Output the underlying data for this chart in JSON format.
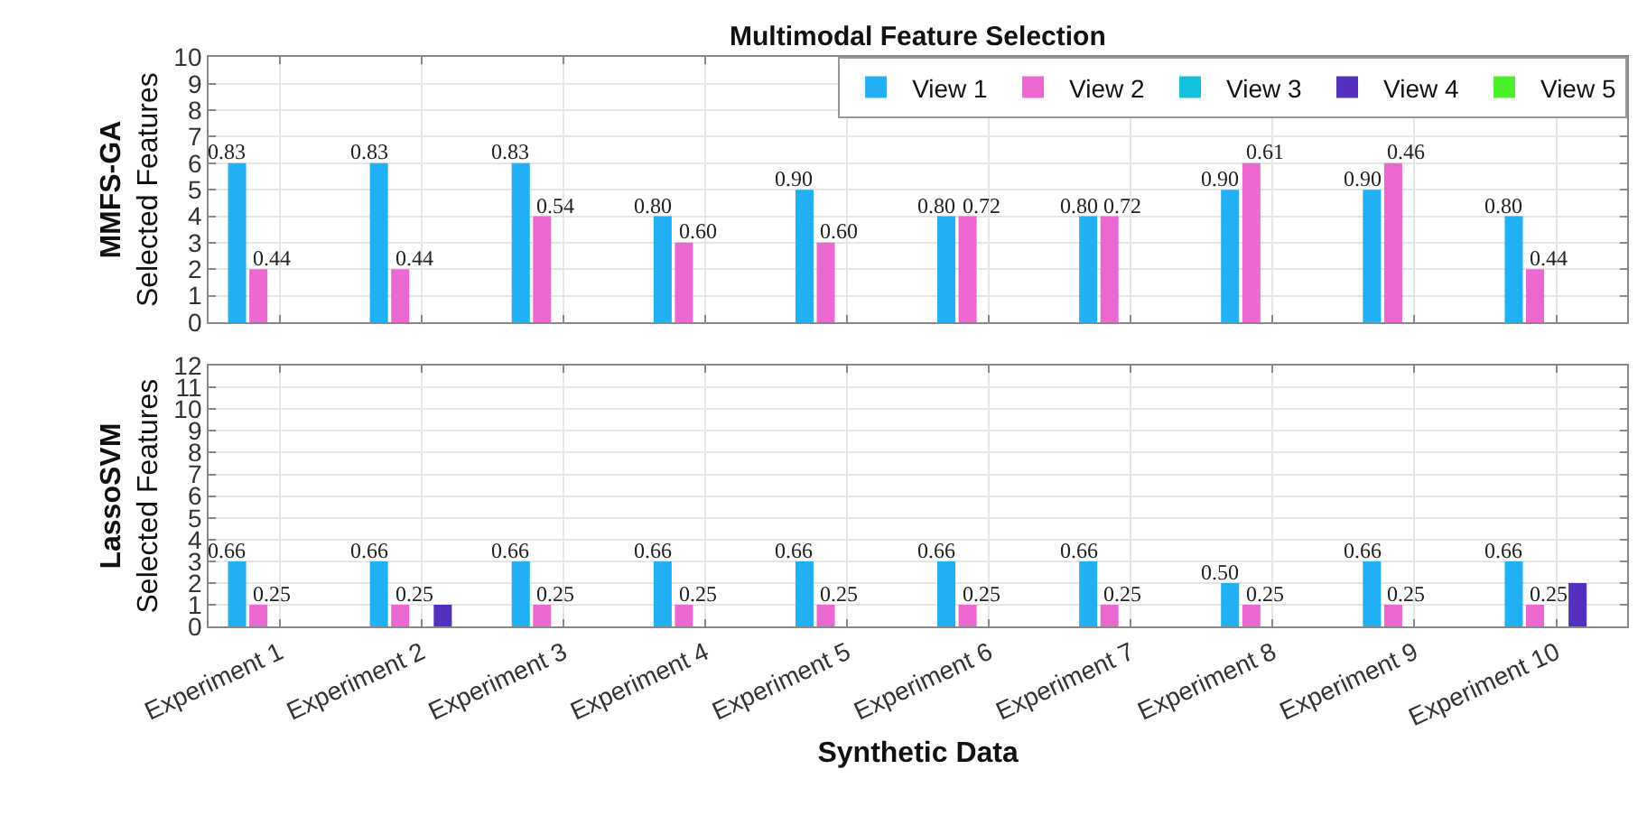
{
  "chart_data": [
    {
      "type": "bar",
      "title": "Multimodal Feature Selection",
      "ylabel": "MMFS-GA\nSelected Features",
      "categories": [
        null,
        null,
        null,
        null,
        null,
        null,
        null,
        null,
        null,
        null
      ],
      "series": [
        {
          "name": "View 1",
          "color": "#22b0f5",
          "values": [
            6,
            6,
            6,
            4,
            5,
            4,
            4,
            5,
            5,
            4
          ]
        },
        {
          "name": "View 2",
          "color": "#ea68cf",
          "values": [
            2,
            2,
            4,
            3,
            3,
            4,
            4,
            6,
            6,
            2
          ]
        },
        {
          "name": "View 3",
          "color": "#12c2db",
          "values": [
            0,
            0,
            0,
            0,
            0,
            0,
            0,
            0,
            0,
            0
          ]
        },
        {
          "name": "View 4",
          "color": "#5530bf",
          "values": [
            0,
            0,
            0,
            0,
            0,
            0,
            0,
            0,
            0,
            0
          ]
        },
        {
          "name": "View 5",
          "color": "#4cf02a",
          "values": [
            0,
            0,
            0,
            0,
            0,
            0,
            0,
            0,
            0,
            0
          ]
        }
      ],
      "annotations": [
        "0.83",
        "0.44",
        "0.83",
        "0.44",
        "0.83",
        "0.54",
        "0.80",
        "0.60",
        "0.90",
        "0.60",
        "0.80",
        "0.72",
        "0.80",
        "0.72",
        "0.90",
        "0.61",
        "0.90",
        "0.46",
        "0.80",
        "0.44"
      ],
      "ylim": [
        0,
        10
      ],
      "yticks": [
        0,
        1,
        2,
        3,
        4,
        5,
        6,
        7,
        8,
        9,
        10
      ],
      "grid": true,
      "legend": "top right",
      "tick_labels": "y"
    },
    {
      "type": "bar",
      "ylabel": "LassoSVM\nSelected Features",
      "xlabel": "Synthetic Data",
      "categories": [
        "Experiment 1",
        "Experiment 2",
        "Experiment 3",
        "Experiment 4",
        "Experiment 5",
        "Experiment 6",
        "Experiment 7",
        "Experiment 8",
        "Experiment 9",
        "Experiment 10"
      ],
      "series": [
        {
          "color": "#22b0f5",
          "values": [
            3,
            3,
            3,
            3,
            3,
            3,
            3,
            2,
            3,
            3
          ]
        },
        {
          "color": "#ea68cf",
          "values": [
            1,
            1,
            1,
            1,
            1,
            1,
            1,
            1,
            1,
            1
          ]
        },
        {
          "color": "#12c2db",
          "values": [
            0,
            0,
            0,
            0,
            0,
            0,
            0,
            0,
            0,
            0
          ]
        },
        {
          "color": "#5530bf",
          "values": [
            0,
            1,
            0,
            0,
            0,
            0,
            0,
            0,
            0,
            2
          ]
        },
        {
          "color": "#4cf02a",
          "values": [
            0,
            0,
            0,
            0,
            0,
            0,
            0,
            0,
            0,
            0
          ]
        }
      ],
      "annotations": [
        "0.66",
        "0.25",
        "0.66",
        "0.25",
        "0.66",
        "0.25",
        "0.66",
        "0.25",
        "0.66",
        "0.25",
        "0.66",
        "0.25",
        "0.66",
        "0.25",
        "0.50",
        "0.25",
        "0.66",
        "0.25",
        "0.66",
        "0.25"
      ],
      "ylim": [
        0,
        12
      ],
      "yticks": [
        0,
        1,
        2,
        3,
        4,
        5,
        6,
        7,
        8,
        9,
        10,
        11,
        12
      ],
      "grid": true
    }
  ]
}
